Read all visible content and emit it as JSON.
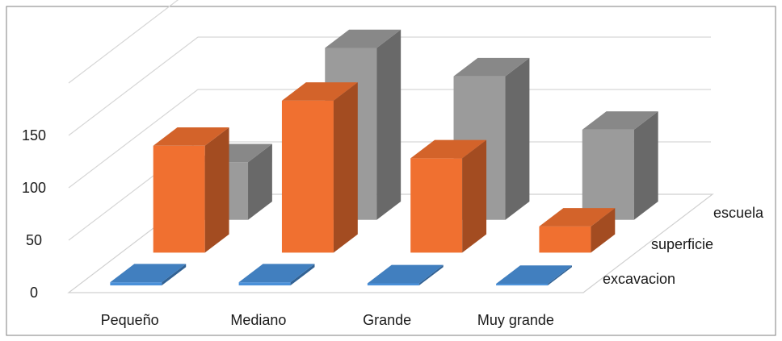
{
  "chart_data": {
    "type": "bar",
    "subtype": "3d-column",
    "categories": [
      "Pequeño",
      "Mediano",
      "Grande",
      "Muy grande"
    ],
    "series": [
      {
        "name": "excavacion",
        "values": [
          3,
          3,
          2,
          1
        ],
        "color": "#4a90d9"
      },
      {
        "name": "superficie",
        "values": [
          102,
          145,
          90,
          25
        ],
        "color": "#f07030"
      },
      {
        "name": "escuela",
        "values": [
          55,
          164,
          137,
          86
        ],
        "color": "#9b9b9b"
      }
    ],
    "y_ticks": [
      "0",
      "50",
      "100",
      "150"
    ],
    "ylim": [
      0,
      200
    ],
    "grid": true,
    "legend": "depth-axis-right",
    "title": "",
    "xlabel": "",
    "ylabel": ""
  }
}
